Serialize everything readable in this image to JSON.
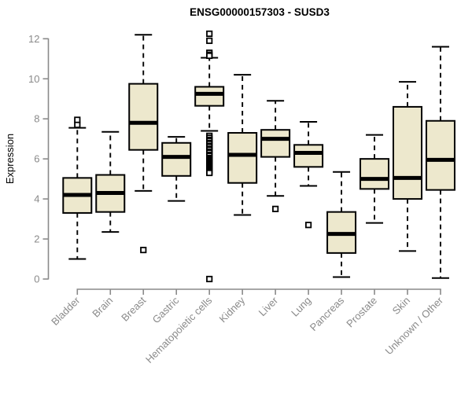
{
  "chart_data": {
    "type": "boxplot",
    "title": "ENSG00000157303 - SUSD3",
    "ylabel": "Expression",
    "xlabel": "",
    "ylim": [
      0,
      12
    ],
    "yticks": [
      0,
      2,
      4,
      6,
      8,
      10,
      12
    ],
    "grid": false,
    "legend": "none",
    "categories": [
      "Bladder",
      "Brain",
      "Breast",
      "Gastric",
      "Hematopoietic cells",
      "Kidney",
      "Liver",
      "Lung",
      "Pancreas",
      "Prostate",
      "Skin",
      "Unknown / Other"
    ],
    "series": [
      {
        "category": "Bladder",
        "whisker_low": 1.0,
        "q1": 3.3,
        "median": 4.2,
        "q3": 5.05,
        "whisker_high": 7.55,
        "outliers": [
          7.7,
          7.95
        ]
      },
      {
        "category": "Brain",
        "whisker_low": 2.35,
        "q1": 3.35,
        "median": 4.3,
        "q3": 5.2,
        "whisker_high": 7.35,
        "outliers": []
      },
      {
        "category": "Breast",
        "whisker_low": 4.4,
        "q1": 6.45,
        "median": 7.8,
        "q3": 9.75,
        "whisker_high": 12.2,
        "outliers": [
          1.45
        ]
      },
      {
        "category": "Gastric",
        "whisker_low": 3.9,
        "q1": 5.15,
        "median": 6.1,
        "q3": 6.8,
        "whisker_high": 7.1,
        "outliers": []
      },
      {
        "category": "Hematopoietic cells",
        "whisker_low": 7.4,
        "q1": 8.65,
        "median": 9.25,
        "q3": 9.6,
        "whisker_high": 11.05,
        "outliers": [
          12.25,
          11.9,
          11.3,
          11.2,
          11.15,
          7.15,
          7.05,
          6.95,
          6.9,
          6.8,
          6.75,
          6.65,
          6.6,
          6.5,
          6.45,
          6.35,
          6.3,
          6.2,
          6.15,
          6.05,
          6.0,
          5.95,
          5.9,
          5.85,
          5.8,
          5.75,
          5.7,
          5.65,
          5.6,
          5.55,
          5.5,
          5.45,
          5.4,
          5.35,
          5.3,
          0.0
        ]
      },
      {
        "category": "Kidney",
        "whisker_low": 3.2,
        "q1": 4.8,
        "median": 6.2,
        "q3": 7.3,
        "whisker_high": 10.2,
        "outliers": []
      },
      {
        "category": "Liver",
        "whisker_low": 4.15,
        "q1": 6.1,
        "median": 7.0,
        "q3": 7.45,
        "whisker_high": 8.9,
        "outliers": [
          3.5
        ]
      },
      {
        "category": "Lung",
        "whisker_low": 4.65,
        "q1": 5.6,
        "median": 6.3,
        "q3": 6.7,
        "whisker_high": 7.85,
        "outliers": [
          2.7
        ]
      },
      {
        "category": "Pancreas",
        "whisker_low": 0.1,
        "q1": 1.3,
        "median": 2.25,
        "q3": 3.35,
        "whisker_high": 5.35,
        "outliers": []
      },
      {
        "category": "Prostate",
        "whisker_low": 2.8,
        "q1": 4.5,
        "median": 5.0,
        "q3": 6.0,
        "whisker_high": 7.2,
        "outliers": []
      },
      {
        "category": "Skin",
        "whisker_low": 1.4,
        "q1": 4.0,
        "median": 5.05,
        "q3": 8.6,
        "whisker_high": 9.85,
        "outliers": []
      },
      {
        "category": "Unknown / Other",
        "whisker_low": 0.05,
        "q1": 4.45,
        "median": 5.95,
        "q3": 7.9,
        "whisker_high": 11.6,
        "outliers": []
      }
    ],
    "colors": {
      "box_fill": "#EDE8CD",
      "box_stroke": "#000000",
      "median": "#000000",
      "whisker": "#000000",
      "outlier_fill": "#FFFFFF",
      "axis": "#8A8A8A",
      "title": "#000000",
      "background": "#FFFFFF"
    }
  }
}
